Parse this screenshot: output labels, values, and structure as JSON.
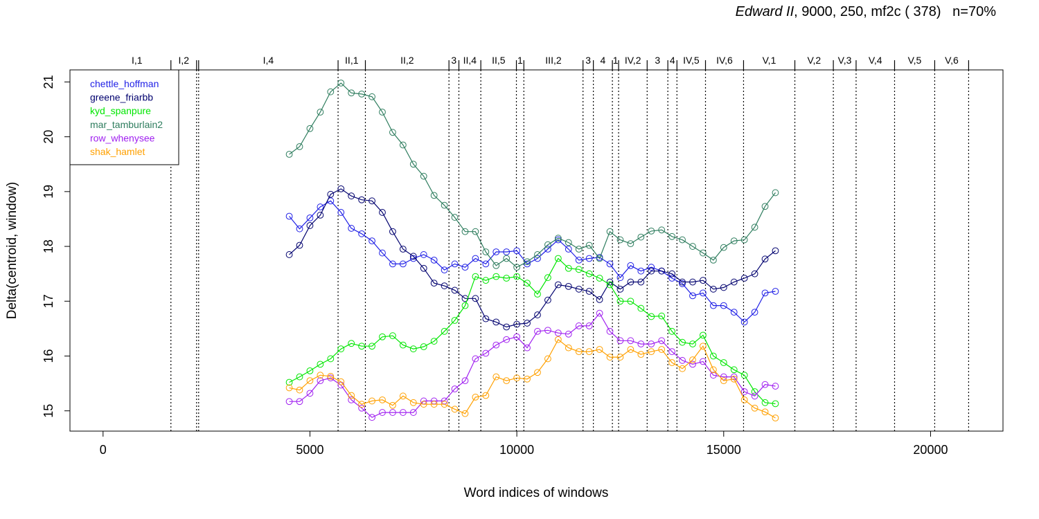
{
  "title": {
    "play": "Edward II",
    "rest": ", 9000, 250, mf2c ( 378)   n=70%"
  },
  "chart_data": {
    "type": "line",
    "xlabel": "Word indices of windows",
    "ylabel": "Delta(centroid, window)",
    "xlim": [
      -800,
      21750
    ],
    "ylim": [
      14.63,
      21.22
    ],
    "x_ticks": [
      0,
      5000,
      10000,
      15000,
      20000
    ],
    "y_ticks": [
      15,
      16,
      17,
      18,
      19,
      20,
      21
    ],
    "grid": false,
    "legend_position": "top-left",
    "scenes": [
      {
        "label": "I,1",
        "end": 1640
      },
      {
        "label": "I,2",
        "end": 2260
      },
      {
        "label": "",
        "end": 2310
      },
      {
        "label": "I,4",
        "end": 5680
      },
      {
        "label": "II,1",
        "end": 6340
      },
      {
        "label": "II,2",
        "end": 8360
      },
      {
        "label": "3",
        "end": 8600
      },
      {
        "label": "II,4",
        "end": 9130
      },
      {
        "label": "II,5",
        "end": 9990
      },
      {
        "label": "1",
        "end": 10170
      },
      {
        "label": "III,2",
        "end": 11600
      },
      {
        "label": "3",
        "end": 11850
      },
      {
        "label": "4",
        "end": 12310
      },
      {
        "label": "1",
        "end": 12460
      },
      {
        "label": "IV,2",
        "end": 13150
      },
      {
        "label": "3",
        "end": 13650
      },
      {
        "label": "4",
        "end": 13870
      },
      {
        "label": "IV,5",
        "end": 14560
      },
      {
        "label": "IV,6",
        "end": 15480
      },
      {
        "label": "V,1",
        "end": 16720
      },
      {
        "label": "V,2",
        "end": 17650
      },
      {
        "label": "V,3",
        "end": 18200
      },
      {
        "label": "V,4",
        "end": 19130
      },
      {
        "label": "V,5",
        "end": 20100
      },
      {
        "label": "V,6",
        "end": 20920
      }
    ],
    "x": [
      4500,
      4750,
      5000,
      5250,
      5500,
      5750,
      6000,
      6250,
      6500,
      6750,
      7000,
      7250,
      7500,
      7750,
      8000,
      8250,
      8500,
      8750,
      9000,
      9250,
      9500,
      9750,
      10000,
      10250,
      10500,
      10750,
      11000,
      11250,
      11500,
      11750,
      12000,
      12250,
      12500,
      12750,
      13000,
      13250,
      13500,
      13750,
      14000,
      14250,
      14500,
      14750,
      15000,
      15250,
      15500,
      15750,
      16000,
      16250
    ],
    "series": [
      {
        "name": "chettle_hoffman",
        "color": "#1f1fe6",
        "values": [
          18.55,
          18.32,
          18.52,
          18.72,
          18.83,
          18.62,
          18.33,
          18.23,
          18.1,
          17.88,
          17.68,
          17.68,
          17.78,
          17.85,
          17.75,
          17.57,
          17.68,
          17.62,
          17.78,
          17.68,
          17.9,
          17.9,
          17.92,
          17.68,
          17.78,
          17.95,
          18.12,
          17.95,
          17.75,
          17.78,
          17.8,
          17.68,
          17.43,
          17.65,
          17.55,
          17.62,
          17.55,
          17.42,
          17.32,
          17.1,
          17.15,
          16.92,
          16.92,
          16.8,
          16.62,
          16.8,
          17.15,
          17.18
        ]
      },
      {
        "name": "greene_friarbb",
        "color": "#00006e",
        "values": [
          17.85,
          18.02,
          18.38,
          18.57,
          18.95,
          19.05,
          18.92,
          18.85,
          18.83,
          18.62,
          18.27,
          17.95,
          17.82,
          17.6,
          17.33,
          17.28,
          17.2,
          17.05,
          17.05,
          16.68,
          16.62,
          16.53,
          16.58,
          16.6,
          16.75,
          17.02,
          17.3,
          17.27,
          17.22,
          17.18,
          17.03,
          17.35,
          17.22,
          17.35,
          17.35,
          17.55,
          17.55,
          17.5,
          17.35,
          17.35,
          17.38,
          17.22,
          17.25,
          17.35,
          17.42,
          17.5,
          17.77,
          17.92
        ]
      },
      {
        "name": "kyd_spanpure",
        "color": "#00e600",
        "values": [
          15.52,
          15.62,
          15.73,
          15.85,
          15.95,
          16.13,
          16.23,
          16.18,
          16.18,
          16.35,
          16.37,
          16.2,
          16.13,
          16.17,
          16.27,
          16.45,
          16.65,
          16.92,
          17.45,
          17.38,
          17.45,
          17.42,
          17.45,
          17.33,
          17.13,
          17.43,
          17.78,
          17.6,
          17.58,
          17.5,
          17.42,
          17.3,
          17.0,
          17.0,
          16.87,
          16.72,
          16.73,
          16.45,
          16.25,
          16.22,
          16.38,
          16.0,
          15.88,
          15.75,
          15.65,
          15.35,
          15.15,
          15.13
        ]
      },
      {
        "name": "mar_tamburlain2",
        "color": "#2e7d5e",
        "values": [
          19.68,
          19.82,
          20.15,
          20.45,
          20.82,
          20.98,
          20.8,
          20.78,
          20.73,
          20.45,
          20.08,
          19.85,
          19.5,
          19.28,
          18.93,
          18.75,
          18.53,
          18.27,
          18.27,
          17.9,
          17.65,
          17.78,
          17.62,
          17.72,
          17.85,
          18.03,
          18.15,
          18.07,
          17.95,
          18.02,
          17.78,
          18.27,
          18.12,
          18.05,
          18.17,
          18.28,
          18.3,
          18.18,
          18.12,
          18.0,
          17.88,
          17.75,
          17.98,
          18.1,
          18.12,
          18.35,
          18.73,
          18.98
        ]
      },
      {
        "name": "row_whenysee",
        "color": "#a020f0",
        "values": [
          15.17,
          15.17,
          15.32,
          15.55,
          15.6,
          15.47,
          15.2,
          15.05,
          14.88,
          14.97,
          14.97,
          14.97,
          14.97,
          15.18,
          15.18,
          15.18,
          15.4,
          15.55,
          15.95,
          16.05,
          16.2,
          16.3,
          16.35,
          16.15,
          16.45,
          16.47,
          16.42,
          16.4,
          16.55,
          16.55,
          16.78,
          16.45,
          16.28,
          16.28,
          16.22,
          16.22,
          16.28,
          16.08,
          15.92,
          15.85,
          15.9,
          15.65,
          15.62,
          15.62,
          15.35,
          15.27,
          15.48,
          15.45
        ]
      },
      {
        "name": "shak_hamlet",
        "color": "#ffa000",
        "values": [
          15.42,
          15.38,
          15.55,
          15.65,
          15.63,
          15.53,
          15.28,
          15.12,
          15.18,
          15.2,
          15.1,
          15.27,
          15.15,
          15.12,
          15.12,
          15.12,
          15.03,
          14.95,
          15.25,
          15.28,
          15.62,
          15.55,
          15.6,
          15.58,
          15.7,
          15.95,
          16.3,
          16.15,
          16.08,
          16.08,
          16.12,
          15.98,
          15.98,
          16.12,
          16.03,
          16.08,
          16.12,
          15.88,
          15.77,
          15.93,
          16.18,
          15.75,
          15.55,
          15.58,
          15.2,
          15.05,
          14.98,
          14.87
        ]
      }
    ]
  }
}
